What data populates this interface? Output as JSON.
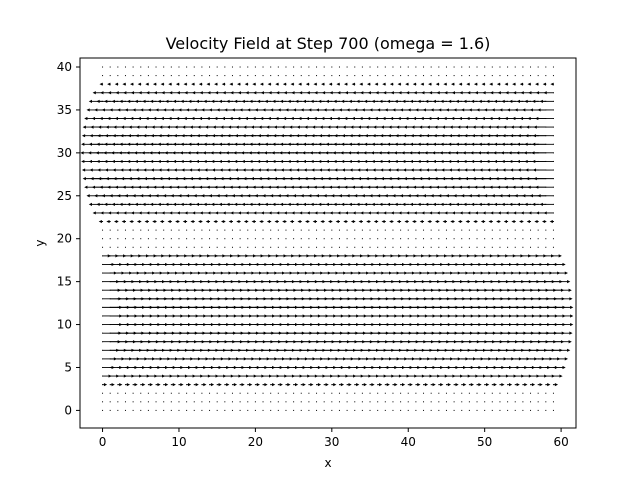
{
  "chart_data": {
    "type": "quiver",
    "title": "Velocity Field at Step 700 (omega = 1.6)",
    "xlabel": "x",
    "ylabel": "y",
    "xlim": [
      -2.95,
      61.95
    ],
    "ylim": [
      -2.05,
      41.05
    ],
    "xticks": [
      0,
      10,
      20,
      30,
      40,
      50,
      60
    ],
    "yticks": [
      0,
      5,
      10,
      15,
      20,
      25,
      30,
      35,
      40
    ],
    "grid": false,
    "legend": "none",
    "color": "#000000",
    "grid_points": {
      "x": {
        "start": 0,
        "stop": 59,
        "step": 1
      },
      "y": {
        "start": 0,
        "stop": 40,
        "step": 1
      }
    },
    "arrow_extent_x_by_row": [
      {
        "y": 0,
        "dx": 0
      },
      {
        "y": 1,
        "dx": 0
      },
      {
        "y": 2,
        "dx": 58.3
      },
      {
        "y": 3,
        "dx": 59.6
      },
      {
        "y": 4,
        "dx": 60.2
      },
      {
        "y": 5,
        "dx": 60.6
      },
      {
        "y": 6,
        "dx": 60.9
      },
      {
        "y": 7,
        "dx": 61.2
      },
      {
        "y": 8,
        "dx": 61.4
      },
      {
        "y": 9,
        "dx": 61.5
      },
      {
        "y": 10,
        "dx": 61.6
      },
      {
        "y": 11,
        "dx": 61.6
      },
      {
        "y": 12,
        "dx": 61.6
      },
      {
        "y": 13,
        "dx": 61.5
      },
      {
        "y": 14,
        "dx": 61.4
      },
      {
        "y": 15,
        "dx": 61.2
      },
      {
        "y": 16,
        "dx": 60.9
      },
      {
        "y": 17,
        "dx": 60.6
      },
      {
        "y": 18,
        "dx": 60.1
      },
      {
        "y": 19,
        "dx": 0
      },
      {
        "y": 20,
        "dx": 0
      },
      {
        "y": 21,
        "dx": 0
      },
      {
        "y": 22,
        "dx": -59.5
      },
      {
        "y": 23,
        "dx": -60.3
      },
      {
        "y": 24,
        "dx": -60.8
      },
      {
        "y": 25,
        "dx": -61.1
      },
      {
        "y": 26,
        "dx": -61.4
      },
      {
        "y": 27,
        "dx": -61.6
      },
      {
        "y": 28,
        "dx": -61.7
      },
      {
        "y": 29,
        "dx": -61.8
      },
      {
        "y": 30,
        "dx": -61.9
      },
      {
        "y": 31,
        "dx": -61.8
      },
      {
        "y": 32,
        "dx": -61.7
      },
      {
        "y": 33,
        "dx": -61.6
      },
      {
        "y": 34,
        "dx": -61.4
      },
      {
        "y": 35,
        "dx": -61.1
      },
      {
        "y": 36,
        "dx": -60.8
      },
      {
        "y": 37,
        "dx": -60.3
      },
      {
        "y": 38,
        "dx": -59.4
      },
      {
        "y": 39,
        "dx": 0
      },
      {
        "y": 40,
        "dx": 0
      }
    ]
  }
}
